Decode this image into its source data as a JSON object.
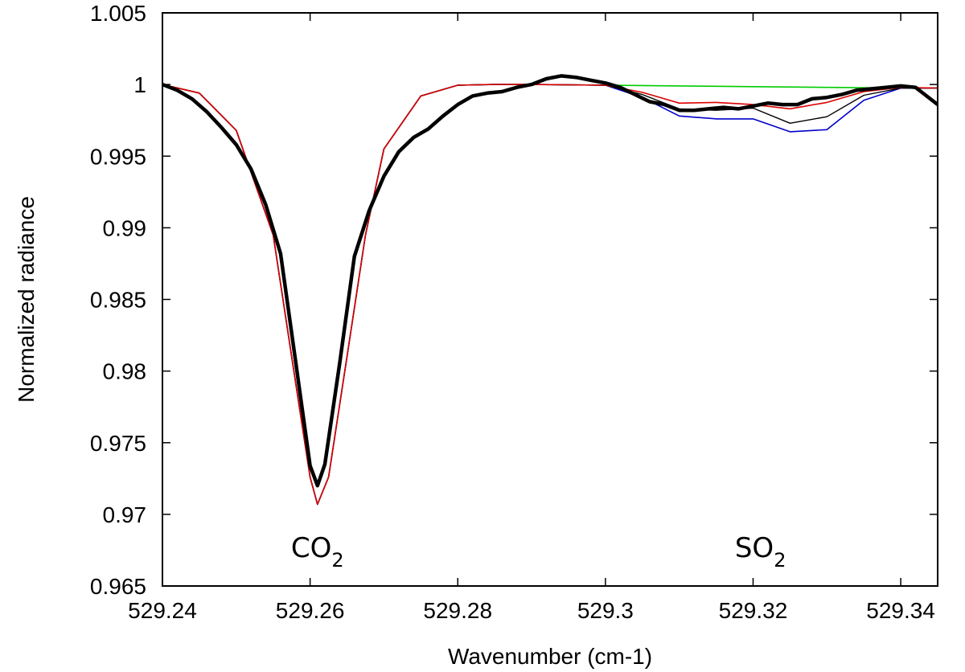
{
  "chart_data": {
    "type": "line",
    "title": "",
    "xlabel": "Wavenumber (cm-1)",
    "ylabel": "Normalized radiance",
    "xlim": [
      529.24,
      529.345
    ],
    "ylim": [
      0.965,
      1.005
    ],
    "xticks": [
      529.24,
      529.26,
      529.28,
      529.3,
      529.32,
      529.34
    ],
    "xtick_labels": [
      "529.24",
      "529.26",
      "529.28",
      "529.3",
      "529.32",
      "529.34"
    ],
    "yticks": [
      0.965,
      0.97,
      0.975,
      0.98,
      0.985,
      0.99,
      0.995,
      1.0,
      1.005
    ],
    "ytick_labels": [
      "0.965",
      "0.97",
      "0.975",
      "0.98",
      "0.985",
      "0.99",
      "0.995",
      "1",
      "1.005"
    ],
    "grid": false,
    "legend": "none",
    "annotations": [
      {
        "base": "CO",
        "sub": "2",
        "x": 529.261,
        "y": 0.9677
      },
      {
        "base": "SO",
        "sub": "2",
        "x": 529.321,
        "y": 0.9677
      }
    ],
    "series": [
      {
        "color": "#00cc00",
        "width": 1.6,
        "x": [
          529.24,
          529.245,
          529.25,
          529.255,
          529.2575,
          529.26,
          529.261,
          529.2625,
          529.265,
          529.2675,
          529.27,
          529.275,
          529.28,
          529.285,
          529.29,
          529.3,
          529.31,
          529.32,
          529.33,
          529.34,
          529.345
        ],
        "y": [
          1.0,
          0.9994,
          0.9968,
          0.9895,
          0.981,
          0.9726,
          0.9707,
          0.9726,
          0.981,
          0.9895,
          0.9955,
          0.9992,
          0.99995,
          1.0,
          1.0,
          0.99995,
          0.9999,
          0.99985,
          0.9998,
          0.99975,
          0.99975
        ]
      },
      {
        "color": "#0000cc",
        "width": 1.6,
        "x": [
          529.24,
          529.245,
          529.25,
          529.255,
          529.2575,
          529.26,
          529.261,
          529.2625,
          529.265,
          529.2675,
          529.27,
          529.275,
          529.28,
          529.285,
          529.29,
          529.3,
          529.305,
          529.31,
          529.315,
          529.32,
          529.325,
          529.33,
          529.335,
          529.34,
          529.345
        ],
        "y": [
          1.0,
          0.9994,
          0.9968,
          0.9895,
          0.981,
          0.9726,
          0.9707,
          0.9726,
          0.981,
          0.9895,
          0.9955,
          0.9992,
          0.99995,
          1.0,
          1.0,
          0.99995,
          0.9991,
          0.9978,
          0.9976,
          0.9976,
          0.9967,
          0.99685,
          0.9989,
          0.99975,
          0.99975
        ]
      },
      {
        "color": "#000000",
        "width": 1.4,
        "x": [
          529.24,
          529.245,
          529.25,
          529.255,
          529.2575,
          529.26,
          529.261,
          529.2625,
          529.265,
          529.2675,
          529.27,
          529.275,
          529.28,
          529.285,
          529.29,
          529.3,
          529.305,
          529.31,
          529.315,
          529.32,
          529.325,
          529.33,
          529.335,
          529.34,
          529.345
        ],
        "y": [
          1.0,
          0.9994,
          0.9968,
          0.9895,
          0.981,
          0.9726,
          0.9707,
          0.9726,
          0.981,
          0.9895,
          0.9955,
          0.9992,
          0.99995,
          1.0,
          1.0,
          0.99995,
          0.9993,
          0.9983,
          0.9982,
          0.99835,
          0.9973,
          0.99775,
          0.99925,
          0.99975,
          0.99975
        ]
      },
      {
        "color": "#dd0000",
        "width": 1.6,
        "x": [
          529.24,
          529.245,
          529.25,
          529.255,
          529.2575,
          529.26,
          529.261,
          529.2625,
          529.265,
          529.2675,
          529.27,
          529.275,
          529.28,
          529.285,
          529.29,
          529.3,
          529.305,
          529.31,
          529.315,
          529.32,
          529.325,
          529.33,
          529.335,
          529.34,
          529.345
        ],
        "y": [
          1.0,
          0.9994,
          0.9968,
          0.9895,
          0.981,
          0.9726,
          0.9707,
          0.9726,
          0.981,
          0.9895,
          0.9955,
          0.9992,
          0.99995,
          1.0,
          1.0,
          0.99995,
          0.99945,
          0.9987,
          0.99875,
          0.9986,
          0.9983,
          0.99875,
          0.9995,
          0.9998,
          0.99975
        ]
      },
      {
        "color": "#000000",
        "width": 4.5,
        "x": [
          529.24,
          529.242,
          529.244,
          529.246,
          529.248,
          529.25,
          529.252,
          529.254,
          529.256,
          529.258,
          529.26,
          529.261,
          529.262,
          529.264,
          529.266,
          529.268,
          529.27,
          529.272,
          529.274,
          529.276,
          529.278,
          529.28,
          529.282,
          529.284,
          529.286,
          529.288,
          529.29,
          529.292,
          529.294,
          529.296,
          529.298,
          529.3,
          529.302,
          529.304,
          529.306,
          529.308,
          529.31,
          529.312,
          529.314,
          529.316,
          529.318,
          529.32,
          529.322,
          529.324,
          529.326,
          529.328,
          529.33,
          529.332,
          529.334,
          529.336,
          529.338,
          529.34,
          529.342,
          529.345
        ],
        "y": [
          1.0,
          0.9996,
          0.999,
          0.9981,
          0.997,
          0.9958,
          0.9941,
          0.9916,
          0.9882,
          0.9808,
          0.9734,
          0.972,
          0.9735,
          0.9805,
          0.988,
          0.9912,
          0.9936,
          0.9953,
          0.9963,
          0.9969,
          0.9978,
          0.9986,
          0.9992,
          0.9994,
          0.9995,
          0.9998,
          1.0,
          1.0004,
          1.0006,
          1.0005,
          1.0003,
          1.0001,
          0.9998,
          0.9993,
          0.9988,
          0.9986,
          0.9982,
          0.9982,
          0.9983,
          0.9984,
          0.9983,
          0.9985,
          0.9987,
          0.9986,
          0.9986,
          0.999,
          0.9991,
          0.9993,
          0.9996,
          0.9997,
          0.9998,
          0.9999,
          0.9998,
          0.9986
        ]
      }
    ]
  }
}
